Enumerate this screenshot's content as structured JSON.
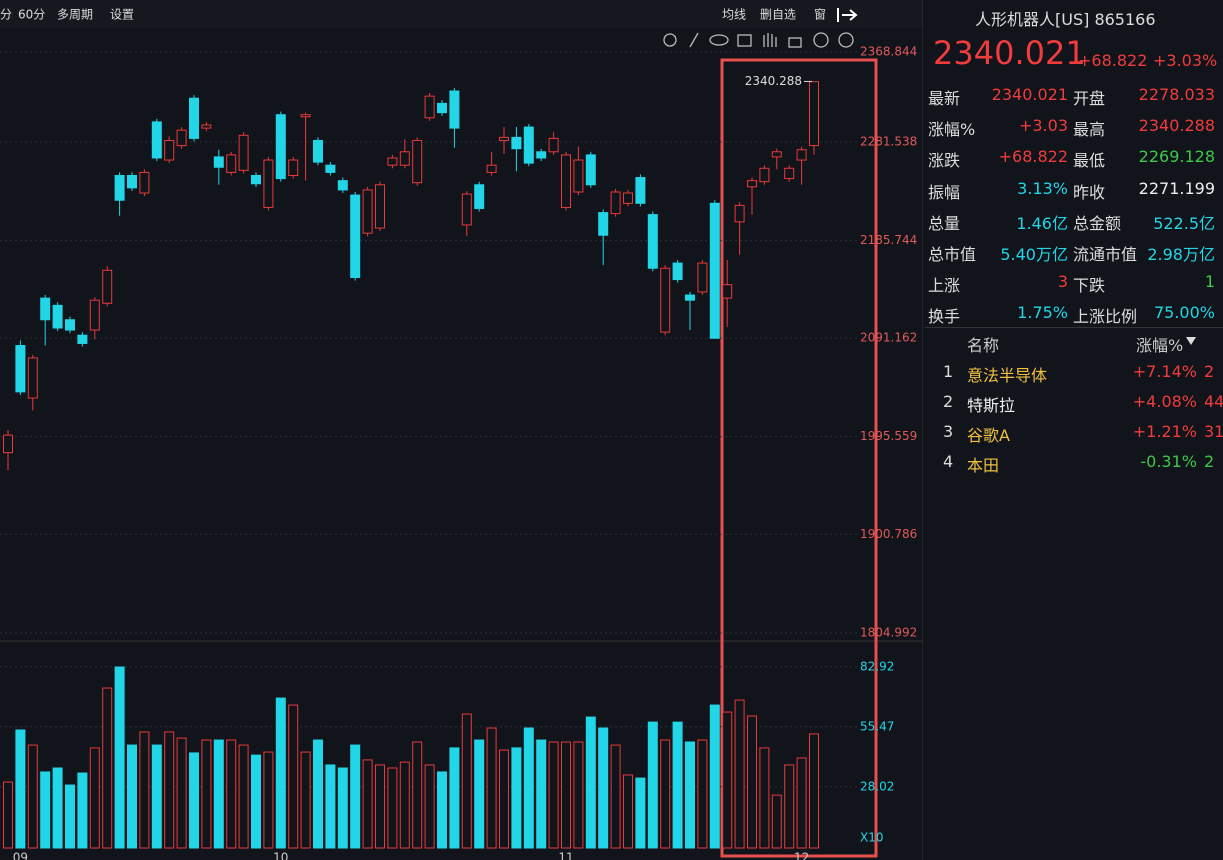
{
  "toolbar": {
    "left": [
      "分",
      "60分",
      "多周期",
      "设置"
    ],
    "right": [
      "均线",
      "删自选",
      "窗"
    ]
  },
  "chart_data": [
    {
      "type": "candlestick",
      "high_label": "2340.288",
      "up_color": "#e83a3a",
      "down_color": "#22d6e8",
      "ylim": [
        1798.2,
        2390.2
      ],
      "yticks": [
        2368.844,
        2281.538,
        2185.744,
        2091.162,
        1995.559,
        1900.786,
        1804.992
      ],
      "grid": true,
      "categories": [
        null,
        "09",
        null,
        null,
        null,
        null,
        null,
        null,
        null,
        null,
        null,
        null,
        null,
        null,
        null,
        null,
        null,
        null,
        null,
        null,
        null,
        null,
        "10",
        null,
        null,
        null,
        null,
        null,
        null,
        null,
        null,
        null,
        null,
        null,
        null,
        null,
        null,
        null,
        null,
        null,
        null,
        null,
        null,
        null,
        null,
        "11",
        null,
        null,
        null,
        null,
        null,
        null,
        null,
        null,
        null,
        null,
        null,
        null,
        null,
        null,
        null,
        null,
        null,
        null,
        "12",
        null
      ],
      "open": [
        1980,
        2084,
        2033,
        2130,
        2123,
        2109,
        2094,
        2099,
        2125,
        2249,
        2249,
        2232,
        2301,
        2264,
        2278,
        2324,
        2295,
        2267,
        2252,
        2254,
        2249,
        2218,
        2308,
        2249,
        2306,
        2283,
        2259,
        2244,
        2230,
        2193,
        2198,
        2259,
        2259,
        2242,
        2305,
        2319,
        2331,
        2201,
        2240,
        2252,
        2283,
        2286,
        2296,
        2272,
        2272,
        2218,
        2233,
        2269,
        2213,
        2212,
        2222,
        2247,
        2211,
        2097,
        2164,
        2133,
        2136,
        2222,
        2130,
        2204,
        2238,
        2243,
        2267,
        2246,
        2264,
        2278.033
      ],
      "high": [
        2002,
        2089,
        2075,
        2133,
        2126,
        2112,
        2097,
        2131,
        2161,
        2252,
        2252,
        2255,
        2304,
        2287,
        2296,
        2327,
        2301,
        2274,
        2272,
        2291,
        2252,
        2267,
        2311,
        2267,
        2310,
        2286,
        2262,
        2247,
        2233,
        2238,
        2243,
        2269,
        2284,
        2286,
        2329,
        2322,
        2334,
        2234,
        2243,
        2272,
        2296,
        2296,
        2299,
        2275,
        2291,
        2272,
        2277,
        2272,
        2216,
        2236,
        2235,
        2250,
        2214,
        2162,
        2167,
        2136,
        2167,
        2225,
        2167,
        2223,
        2247,
        2259,
        2275,
        2259,
        2277,
        2340.288
      ],
      "low": [
        1963,
        2036,
        2021,
        2084,
        2098,
        2096,
        2083,
        2090,
        2122,
        2210,
        2234,
        2229,
        2263,
        2261,
        2275,
        2282,
        2292,
        2240,
        2249,
        2251,
        2238,
        2215,
        2243,
        2246,
        2244,
        2259,
        2249,
        2232,
        2147,
        2190,
        2195,
        2256,
        2256,
        2239,
        2302,
        2307,
        2276,
        2190,
        2214,
        2249,
        2270,
        2253,
        2258,
        2263,
        2269,
        2215,
        2230,
        2237,
        2162,
        2209,
        2219,
        2219,
        2156,
        2094,
        2145,
        2099,
        2133,
        2091,
        2102,
        2172,
        2211,
        2240,
        2255,
        2243,
        2240,
        2269.128
      ],
      "close": [
        1997,
        2039,
        2072,
        2109,
        2101,
        2099,
        2086,
        2128,
        2157,
        2225,
        2237,
        2252,
        2266,
        2283,
        2293,
        2285,
        2298,
        2257,
        2269,
        2288,
        2241,
        2264,
        2246,
        2264,
        2308,
        2262,
        2252,
        2235,
        2150,
        2235,
        2240,
        2266,
        2272,
        2283,
        2326,
        2310,
        2295,
        2231,
        2217,
        2259,
        2286,
        2275,
        2261,
        2266,
        2285,
        2269,
        2264,
        2240,
        2191,
        2233,
        2232,
        2222,
        2159,
        2159,
        2148,
        2128,
        2164,
        2091,
        2143,
        2220,
        2244,
        2256,
        2272,
        2256,
        2274,
        2340.021
      ]
    },
    {
      "type": "bar",
      "unit_label": "X10",
      "ylim": [
        0,
        93.8
      ],
      "yticks": [
        82.92,
        55.47,
        28.02
      ],
      "values": [
        30.2,
        54.0,
        47.1,
        34.8,
        36.6,
        28.8,
        34.3,
        45.8,
        73.2,
        82.8,
        47.1,
        53.1,
        47.1,
        53.1,
        50.3,
        43.5,
        49.4,
        49.4,
        49.4,
        47.1,
        42.5,
        43.9,
        68.6,
        65.4,
        43.9,
        49.4,
        38.0,
        36.6,
        47.1,
        40.3,
        38.0,
        36.6,
        39.3,
        48.5,
        38.0,
        34.8,
        45.8,
        61.3,
        49.4,
        54.9,
        44.8,
        45.8,
        54.9,
        49.4,
        48.5,
        48.5,
        48.5,
        59.9,
        54.9,
        47.1,
        33.4,
        32.0,
        57.6,
        49.4,
        57.6,
        48.5,
        49.4,
        65.4,
        62.2,
        67.7,
        60.4,
        45.8,
        24.2,
        38.0,
        41.2,
        52.2
      ]
    }
  ],
  "quote": {
    "title": "人形机器人[US] 865166",
    "price": "2340.021",
    "change": "+68.822",
    "pct": "+3.03%",
    "rows": [
      [
        "最新",
        "2340.021",
        "开盘",
        "2278.033"
      ],
      [
        "涨幅%",
        "+3.03",
        "最高",
        "2340.288"
      ],
      [
        "涨跌",
        "+68.822",
        "最低",
        "2269.128"
      ],
      [
        "振幅",
        "3.13%",
        "昨收",
        "2271.199"
      ],
      [
        "总量",
        "1.46亿",
        "总金额",
        "522.5亿"
      ],
      [
        "总市值",
        "5.40万亿",
        "流通市值",
        "2.98万亿"
      ],
      [
        "上涨",
        "3",
        "下跌",
        "1"
      ],
      [
        "换手",
        "1.75%",
        "上涨比例",
        "75.00%"
      ]
    ]
  },
  "constituents": {
    "header": [
      "名称",
      "涨幅%"
    ],
    "rows": [
      [
        "1",
        "意法半导体",
        "+7.14%",
        "2"
      ],
      [
        "2",
        "特斯拉",
        "+4.08%",
        "44"
      ],
      [
        "3",
        "谷歌A",
        "+1.21%",
        "31"
      ],
      [
        "4",
        "本田",
        "-0.31%",
        "2"
      ]
    ]
  }
}
